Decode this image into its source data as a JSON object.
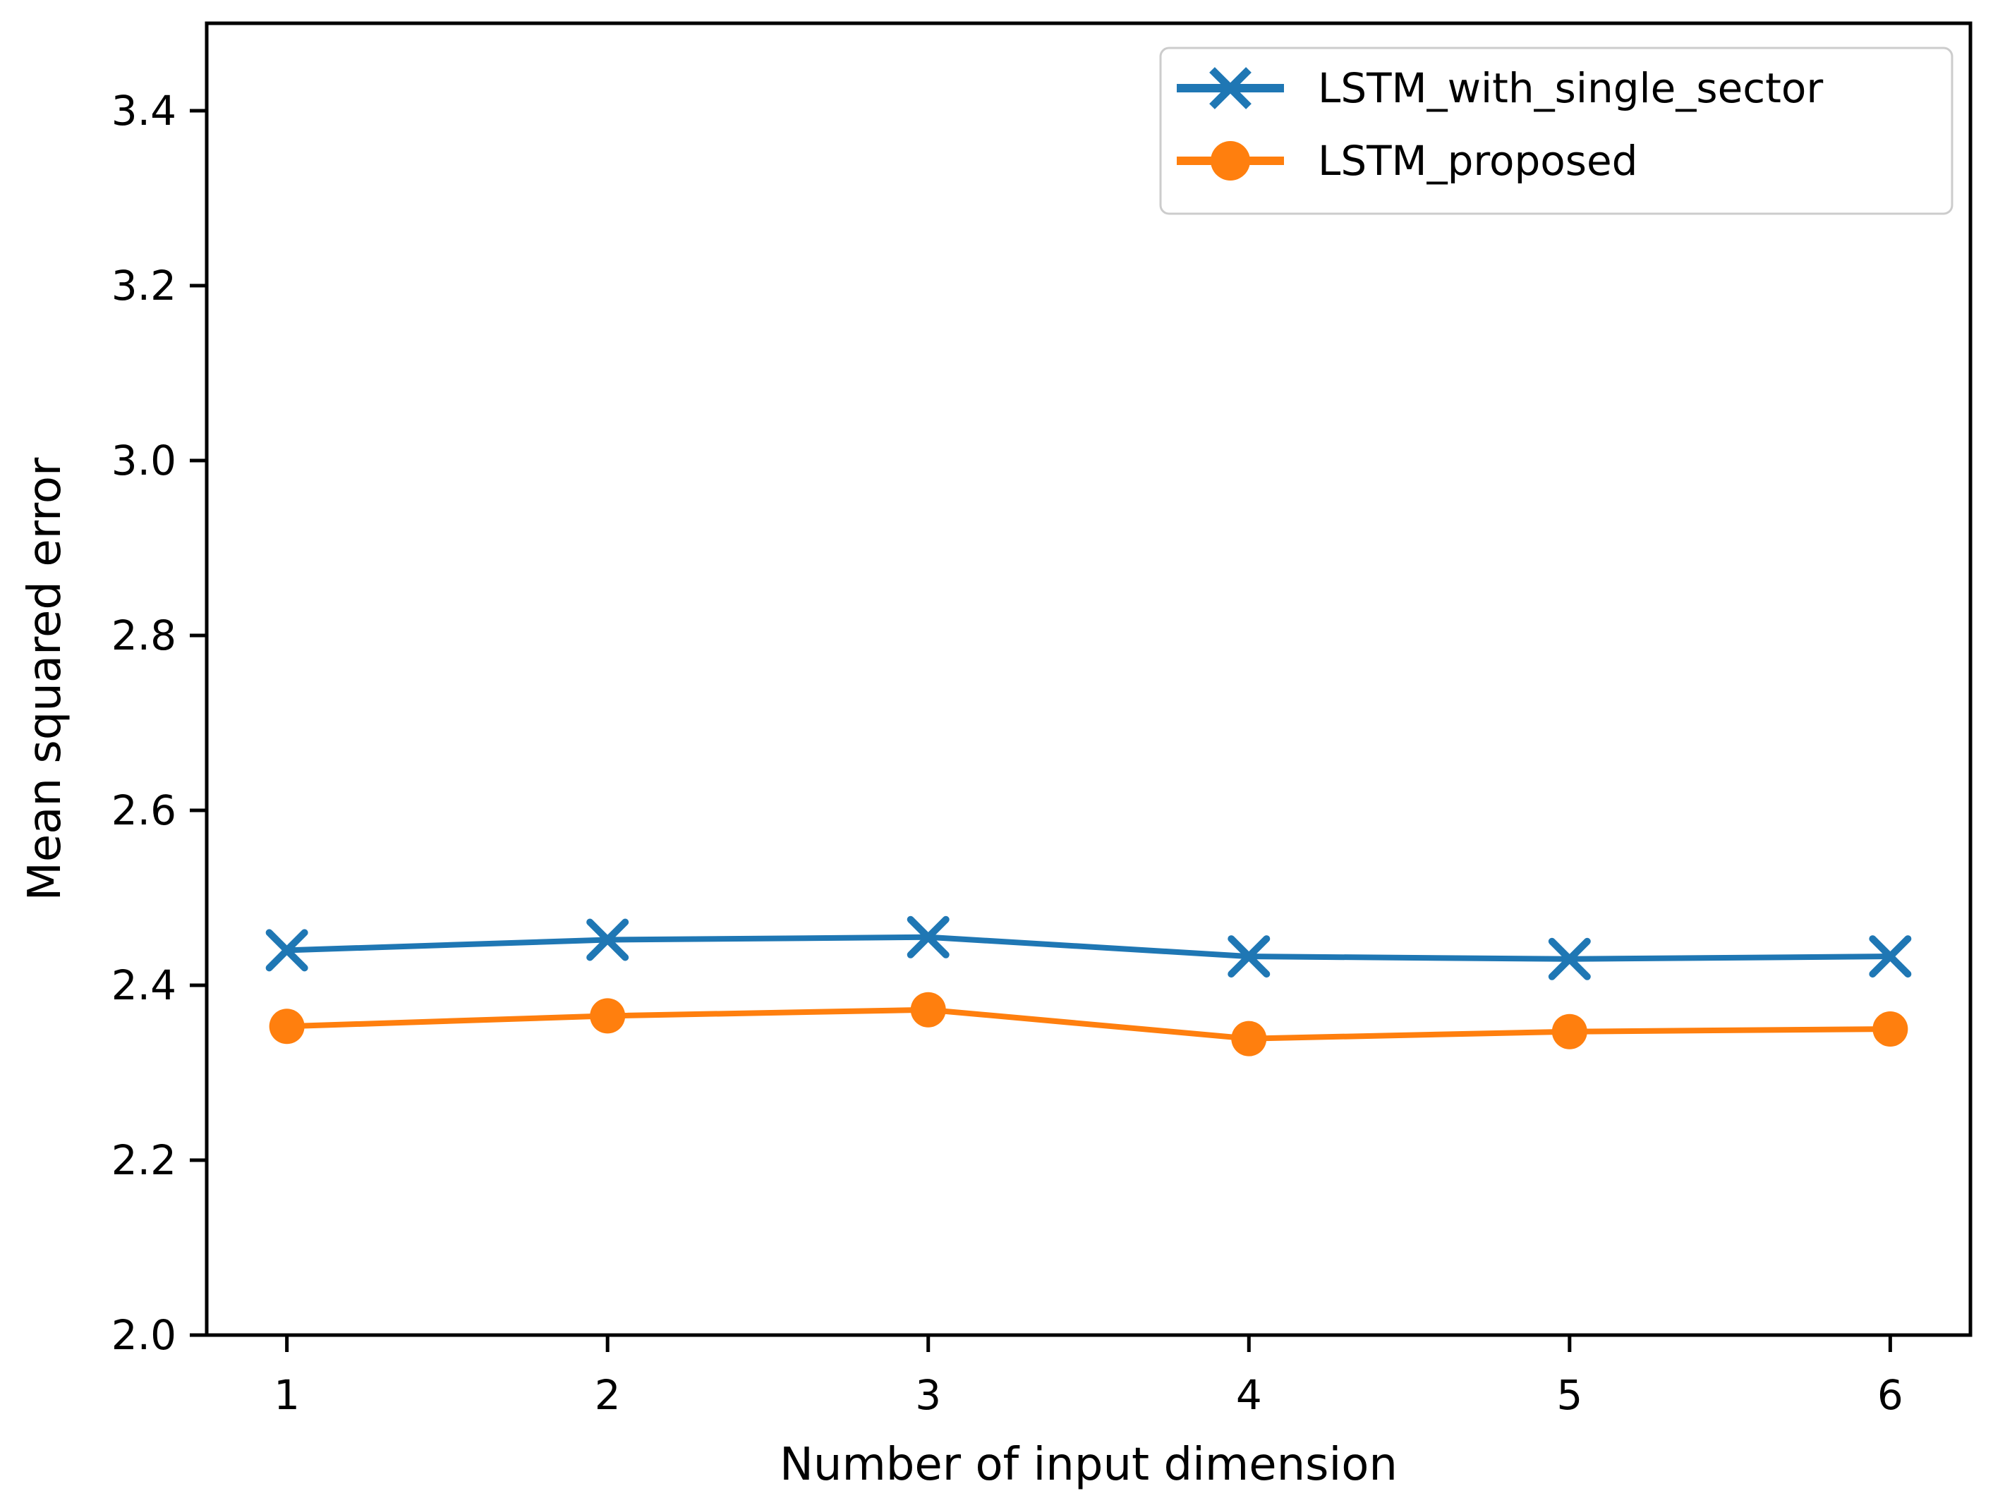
{
  "figure": {
    "background": "#ffffff",
    "x_ticks": [
      "1",
      "2",
      "3",
      "4",
      "5",
      "6"
    ],
    "y_ticks": [
      "2.0",
      "2.2",
      "2.4",
      "2.6",
      "2.8",
      "3.0",
      "3.2",
      "3.4"
    ]
  },
  "chart_data": {
    "type": "line",
    "title": "",
    "xlabel": "Number of input dimension",
    "ylabel": "Mean squared error",
    "xlim": [
      0.75,
      6.25
    ],
    "ylim": [
      2.0,
      3.5
    ],
    "grid": false,
    "legend_position": "upper right",
    "x": [
      1,
      2,
      3,
      4,
      5,
      6
    ],
    "series": [
      {
        "name": "LSTM_with_single_sector",
        "color": "#1f77b4",
        "marker": "x",
        "values": [
          2.44,
          2.452,
          2.455,
          2.433,
          2.43,
          2.433
        ]
      },
      {
        "name": "LSTM_proposed",
        "color": "#ff7f0e",
        "marker": "o",
        "values": [
          2.353,
          2.365,
          2.372,
          2.339,
          2.347,
          2.35
        ]
      }
    ]
  },
  "legend": {
    "border_color": "#cccccc",
    "fill_color": "#ffffff"
  }
}
